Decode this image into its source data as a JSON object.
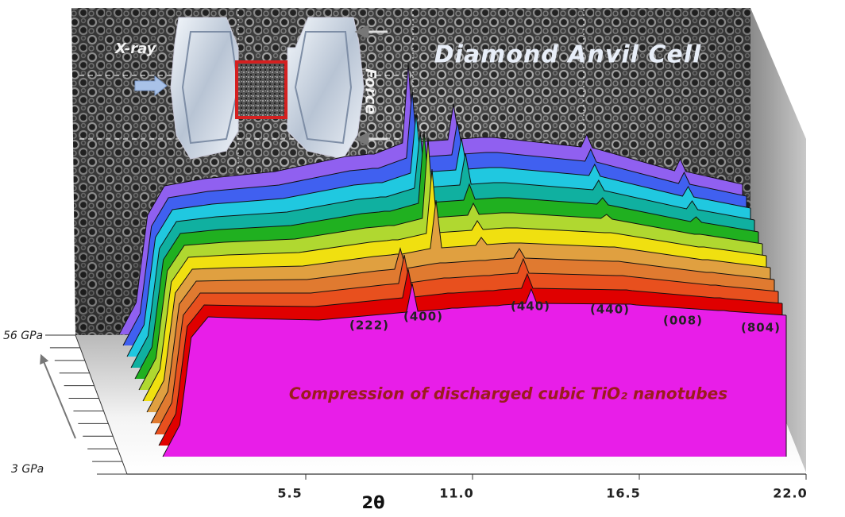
{
  "chart_data": {
    "type": "waterfall",
    "title": "Diamond Anvil Cell",
    "inset_labels": [
      "X-ray",
      "Force"
    ],
    "caption": "Compression of discharged cubic TiO₂ nanotubes",
    "x_label": "2θ",
    "z_labels": [
      "56 GPa",
      "3 GPa"
    ],
    "annotations": [
      "(222)",
      "(400)",
      "(440)",
      "(440)",
      "(008)",
      "(804)"
    ],
    "xlim": [
      0,
      22
    ],
    "xticks": [
      5.5,
      {
        "value": 11,
        "label": "11.0"
      },
      16.5,
      {
        "value": 22,
        "label": "22.0"
      }
    ],
    "ylim": [
      0,
      350
    ],
    "x": [
      0,
      0.6,
      1.0,
      1.6,
      3,
      5.5,
      8,
      8.6,
      8.8,
      9.0,
      10.0,
      10.2,
      10.4,
      11.6,
      11.8,
      12.0,
      12.8,
      13.0,
      13.2,
      16.3,
      16.5,
      16.7,
      19.6,
      19.8,
      20.0,
      22
    ],
    "series": [
      {
        "color": "#e81ee8",
        "values": [
          0,
          40,
          150,
          176,
          174,
          172,
          180,
          182,
          218,
          183,
          186,
          187,
          187,
          190,
          190,
          191,
          193,
          211,
          193,
          192,
          192,
          191,
          184,
          184,
          183,
          178
        ]
      },
      {
        "color": "#e00000",
        "values": [
          0,
          40,
          150,
          177,
          176,
          175,
          184,
          186,
          222,
          187,
          191,
          192,
          192,
          195,
          195,
          196,
          198,
          216,
          198,
          196,
          196,
          195,
          186,
          186,
          185,
          179
        ]
      },
      {
        "color": "#e8501e",
        "values": [
          0,
          40,
          150,
          178,
          178,
          178,
          188,
          190,
          226,
          191,
          196,
          197,
          197,
          200,
          200,
          201,
          203,
          221,
          203,
          200,
          200,
          199,
          188,
          188,
          187,
          180
        ]
      },
      {
        "color": "#e07a30",
        "values": [
          0,
          40,
          150,
          179,
          180,
          181,
          192,
          194,
          220,
          195,
          201,
          202,
          202,
          205,
          205,
          206,
          208,
          220,
          208,
          204,
          204,
          203,
          190,
          190,
          189,
          181
        ]
      },
      {
        "color": "#e0a040",
        "values": [
          0,
          40,
          150,
          180,
          182,
          184,
          196,
          198,
          199,
          199,
          206,
          267,
          207,
          210,
          220,
          211,
          213,
          213,
          213,
          208,
          208,
          207,
          192,
          192,
          191,
          182
        ]
      },
      {
        "color": "#f0e010",
        "values": [
          0,
          40,
          150,
          181,
          184,
          187,
          200,
          202,
          203,
          203,
          211,
          292,
          212,
          215,
          227,
          216,
          218,
          218,
          218,
          212,
          212,
          211,
          194,
          194,
          193,
          183
        ]
      },
      {
        "color": "#b0d830",
        "values": [
          0,
          40,
          150,
          182,
          186,
          190,
          204,
          206,
          207,
          207,
          216,
          317,
          217,
          220,
          235,
          221,
          223,
          223,
          223,
          216,
          221,
          215,
          196,
          196,
          195,
          184
        ]
      },
      {
        "color": "#20b020",
        "values": [
          0,
          40,
          150,
          183,
          188,
          193,
          208,
          210,
          211,
          211,
          221,
          312,
          222,
          225,
          245,
          226,
          228,
          228,
          228,
          220,
          228,
          219,
          198,
          204,
          197,
          185
        ]
      },
      {
        "color": "#10b0a0",
        "values": [
          0,
          40,
          150,
          184,
          190,
          196,
          212,
          214,
          215,
          215,
          226,
          297,
          227,
          230,
          270,
          231,
          233,
          233,
          233,
          224,
          236,
          223,
          200,
          210,
          199,
          186
        ]
      },
      {
        "color": "#20c8e0",
        "values": [
          0,
          40,
          150,
          185,
          192,
          199,
          216,
          218,
          219,
          219,
          231,
          307,
          232,
          235,
          275,
          236,
          238,
          238,
          238,
          228,
          242,
          227,
          202,
          214,
          201,
          187
        ]
      },
      {
        "color": "#4060f0",
        "values": [
          0,
          40,
          150,
          186,
          194,
          202,
          220,
          222,
          223,
          223,
          236,
          322,
          237,
          240,
          282,
          241,
          243,
          243,
          243,
          232,
          247,
          231,
          204,
          218,
          203,
          188
        ]
      },
      {
        "color": "#9060f0",
        "values": [
          0,
          40,
          150,
          187,
          196,
          205,
          224,
          226,
          227,
          227,
          241,
          342,
          242,
          245,
          290,
          246,
          248,
          248,
          248,
          236,
          252,
          235,
          206,
          221,
          205,
          189
        ]
      }
    ]
  }
}
